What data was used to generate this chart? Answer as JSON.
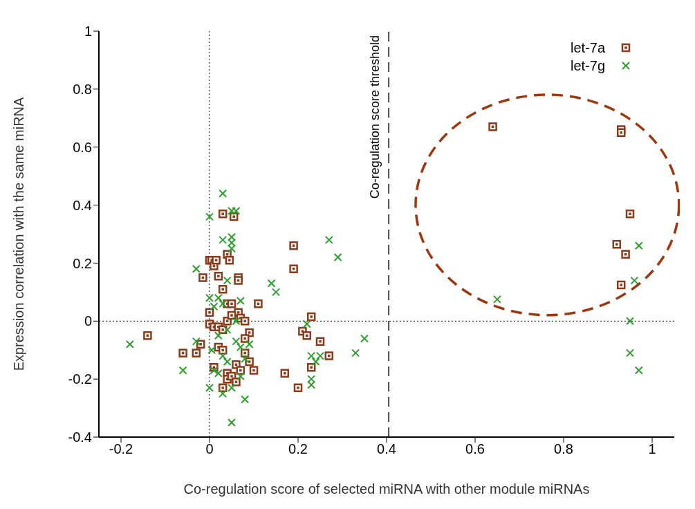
{
  "chart_data": {
    "type": "scatter",
    "xlabel": "Co-regulation score of selected miRNA with other module miRNAs",
    "ylabel": "Expression correlation with the same miRNA",
    "xlim": [
      -0.25,
      1.05
    ],
    "ylim": [
      -0.4,
      1
    ],
    "xticks": [
      -0.2,
      0,
      0.2,
      0.4,
      0.6,
      0.8,
      1
    ],
    "yticks": [
      -0.4,
      -0.2,
      0,
      0.2,
      0.4,
      0.6,
      0.8,
      1
    ],
    "grid": false,
    "legend": "top right",
    "ref_lines": [
      {
        "axis": "x",
        "value": 0,
        "line_style": "dotted"
      },
      {
        "axis": "y",
        "value": 0,
        "line_style": "dotted"
      },
      {
        "axis": "x",
        "value": 0.405,
        "label": "Co-regulation score threshold",
        "line_style": "dashed"
      }
    ],
    "series": [
      {
        "name": "let-7a",
        "color": "#8b3a1a",
        "marker": "square",
        "x": [
          -0.14,
          -0.06,
          -0.03,
          -0.02,
          -0.015,
          0.0,
          0.005,
          0.01,
          0.015,
          0.02,
          0.03,
          0.055,
          0.04,
          0.045,
          0.065,
          0.065,
          0.03,
          0.04,
          0.05,
          0.065,
          0.0,
          0.0,
          0.01,
          0.02,
          0.03,
          0.04,
          0.05,
          0.07,
          0.08,
          0.09,
          0.08,
          0.11,
          0.02,
          0.03,
          0.01,
          0.04,
          0.04,
          0.05,
          0.06,
          0.06,
          0.07,
          0.08,
          0.09,
          0.1,
          0.03,
          0.17,
          0.19,
          0.19,
          0.2,
          0.21,
          0.22,
          0.23,
          0.23,
          0.25,
          0.27,
          0.64,
          0.93,
          0.93,
          0.95,
          0.92,
          0.94,
          0.93
        ],
        "values": [
          -0.05,
          -0.11,
          -0.11,
          -0.08,
          0.15,
          0.21,
          0.21,
          0.19,
          0.21,
          0.155,
          0.37,
          0.36,
          0.23,
          0.21,
          0.15,
          0.14,
          0.11,
          0.06,
          0.06,
          0.03,
          0.03,
          -0.01,
          -0.02,
          -0.02,
          -0.03,
          0.0,
          0.02,
          0.01,
          0.0,
          -0.04,
          -0.06,
          0.06,
          -0.09,
          -0.1,
          -0.16,
          -0.18,
          -0.2,
          -0.19,
          -0.21,
          -0.15,
          -0.17,
          -0.11,
          -0.14,
          -0.17,
          -0.23,
          -0.18,
          0.26,
          0.18,
          -0.23,
          -0.035,
          -0.05,
          0.015,
          -0.16,
          -0.07,
          -0.12,
          0.67,
          0.66,
          0.65,
          0.37,
          0.265,
          0.23,
          0.125
        ]
      },
      {
        "name": "let-7g",
        "color": "#2ca02c",
        "marker": "cross",
        "x": [
          -0.18,
          -0.06,
          -0.03,
          -0.03,
          0.0,
          0.0,
          0.0,
          0.005,
          0.01,
          0.03,
          0.03,
          0.05,
          0.05,
          0.05,
          0.06,
          0.05,
          0.04,
          0.02,
          0.01,
          0.03,
          0.07,
          0.06,
          0.04,
          0.02,
          0.03,
          0.04,
          0.05,
          0.03,
          0.05,
          0.08,
          0.06,
          0.07,
          0.08,
          0.07,
          0.09,
          0.02,
          0.14,
          0.15,
          0.22,
          0.23,
          0.23,
          0.23,
          0.24,
          0.25,
          0.27,
          0.29,
          0.33,
          0.35,
          0.65,
          0.97,
          0.96,
          0.95,
          0.95,
          0.97
        ],
        "values": [
          -0.08,
          -0.17,
          0.18,
          -0.07,
          0.36,
          0.08,
          -0.23,
          -0.1,
          -0.17,
          0.44,
          0.28,
          0.38,
          0.29,
          0.27,
          0.38,
          0.25,
          0.14,
          0.08,
          0.05,
          0.06,
          0.07,
          0.0,
          -0.03,
          -0.05,
          -0.12,
          -0.14,
          -0.23,
          -0.25,
          -0.35,
          -0.27,
          -0.07,
          -0.09,
          -0.13,
          -0.19,
          -0.08,
          -0.18,
          0.13,
          0.1,
          -0.01,
          -0.12,
          -0.2,
          -0.22,
          -0.14,
          -0.12,
          0.28,
          0.22,
          -0.11,
          -0.06,
          0.075,
          0.26,
          0.14,
          0.0,
          -0.11,
          -0.17
        ]
      }
    ]
  }
}
